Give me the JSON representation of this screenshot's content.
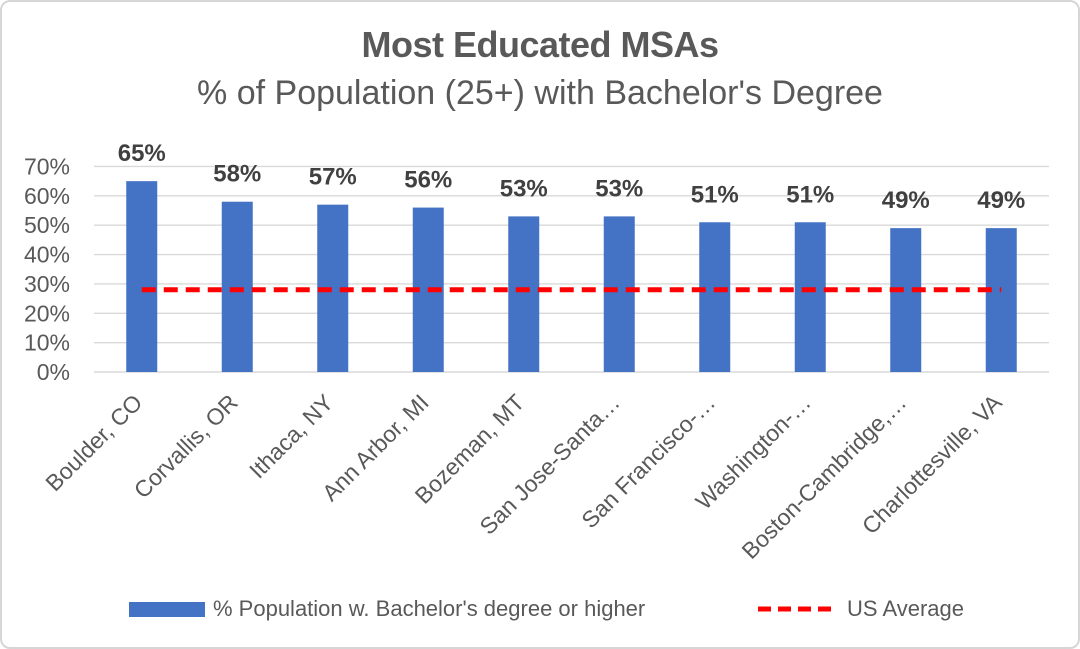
{
  "chart_data": {
    "type": "bar",
    "title": "Most Educated MSAs",
    "subtitle": "% of Population (25+) with Bachelor's Degree",
    "categories": [
      "Boulder, CO",
      "Corvallis, OR",
      "Ithaca, NY",
      "Ann Arbor, MI",
      "Bozeman, MT",
      "San Jose-Santa…",
      "San Francisco-…",
      "Washington-…",
      "Boston-Cambridge,…",
      "Charlottesville, VA"
    ],
    "series": [
      {
        "name": "% Population w. Bachelor's degree or higher",
        "type": "bar",
        "color": "#4472C4",
        "values": [
          65,
          58,
          57,
          56,
          53,
          53,
          51,
          51,
          49,
          49
        ],
        "labels": [
          "65%",
          "58%",
          "57%",
          "56%",
          "53%",
          "53%",
          "51%",
          "51%",
          "49%",
          "49%"
        ]
      },
      {
        "name": "US Average",
        "type": "line",
        "style": "dashed",
        "color": "#FF0000",
        "value": 28
      }
    ],
    "ylim": [
      0,
      70
    ],
    "y_ticks": [
      "0%",
      "10%",
      "20%",
      "30%",
      "40%",
      "50%",
      "60%",
      "70%"
    ],
    "grid": true,
    "grid_color": "#D9D9D9",
    "axis_label_color": "#595959",
    "data_label_color": "#404040",
    "legend_position": "bottom"
  }
}
